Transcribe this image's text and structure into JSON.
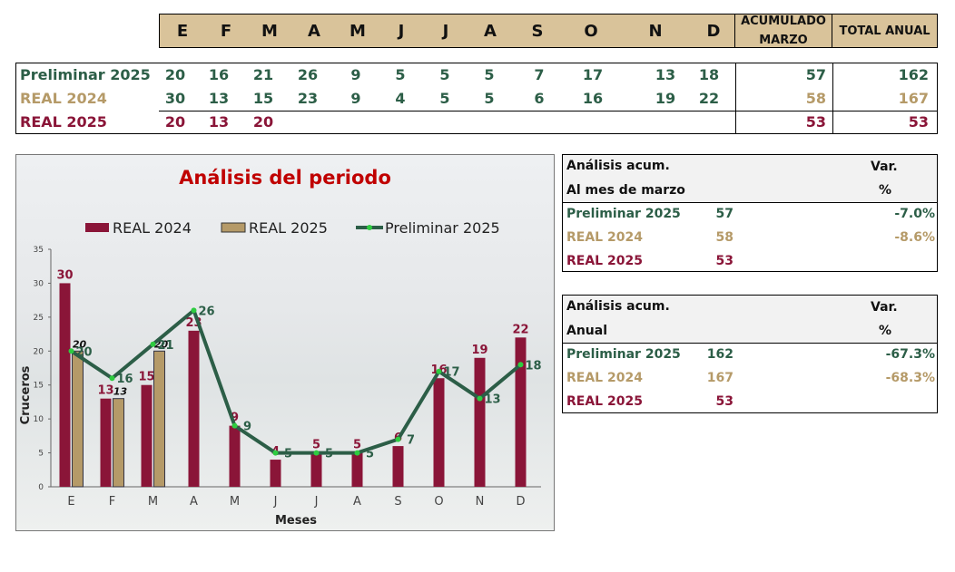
{
  "header": {
    "months": [
      "E",
      "F",
      "M",
      "A",
      "M",
      "J",
      "J",
      "A",
      "S",
      "O",
      "N",
      "D"
    ],
    "acum_label_1": "ACUMULADO",
    "acum_label_2": "MARZO",
    "total_label": "TOTAL ANUAL"
  },
  "table": {
    "rows": [
      {
        "label": "Preliminar 2025",
        "values": [
          "20",
          "16",
          "21",
          "26",
          "9",
          "5",
          "5",
          "5",
          "7",
          "17",
          "13",
          "18"
        ],
        "acum": "57",
        "total": "162"
      },
      {
        "label": "REAL 2024",
        "values": [
          "30",
          "13",
          "15",
          "23",
          "9",
          "4",
          "5",
          "5",
          "6",
          "16",
          "19",
          "22"
        ],
        "acum": "58",
        "total": "167"
      },
      {
        "label": "REAL 2025",
        "values": [
          "20",
          "13",
          "20",
          "",
          "",
          "",
          "",
          "",
          "",
          "",
          "",
          ""
        ],
        "acum": "53",
        "total": "53"
      }
    ]
  },
  "panel_marzo": {
    "h1": "Análisis acum.",
    "h2": "Al mes de marzo",
    "var": "Var.",
    "pct": "%",
    "rows": [
      {
        "label": "Preliminar 2025",
        "value": "57",
        "var": "-7.0%"
      },
      {
        "label": "REAL 2024",
        "value": "58",
        "var": "-8.6%"
      },
      {
        "label": "REAL 2025",
        "value": "53",
        "var": ""
      }
    ]
  },
  "panel_anual": {
    "h1": "Análisis acum.",
    "h2": "Anual",
    "var": "Var.",
    "pct": "%",
    "rows": [
      {
        "label": "Preliminar 2025",
        "value": "162",
        "var": "-67.3%"
      },
      {
        "label": "REAL 2024",
        "value": "167",
        "var": "-68.3%"
      },
      {
        "label": "REAL 2025",
        "value": "53",
        "var": ""
      }
    ]
  },
  "colors": {
    "real2024": "#8a1538",
    "real2025": "#b59a68",
    "preliminar": "#2c5e47",
    "title": "#c00000"
  },
  "chart_data": {
    "type": "bar",
    "title": "Análisis del periodo",
    "xlabel": "Meses",
    "ylabel": "Cruceros",
    "ylim": [
      0,
      35
    ],
    "yticks": [
      0,
      5,
      10,
      15,
      20,
      25,
      30,
      35
    ],
    "categories": [
      "E",
      "F",
      "M",
      "A",
      "M",
      "J",
      "J",
      "A",
      "S",
      "O",
      "N",
      "D"
    ],
    "legend_position": "top",
    "series": [
      {
        "name": "REAL 2024",
        "type": "bar",
        "values": [
          30,
          13,
          15,
          23,
          9,
          4,
          5,
          5,
          6,
          16,
          19,
          22
        ]
      },
      {
        "name": "REAL 2025",
        "type": "bar",
        "values": [
          20,
          13,
          20,
          null,
          null,
          null,
          null,
          null,
          null,
          null,
          null,
          null
        ]
      },
      {
        "name": "Preliminar 2025",
        "type": "line",
        "values": [
          20,
          16,
          21,
          26,
          9,
          5,
          5,
          5,
          7,
          17,
          13,
          18
        ]
      }
    ]
  }
}
